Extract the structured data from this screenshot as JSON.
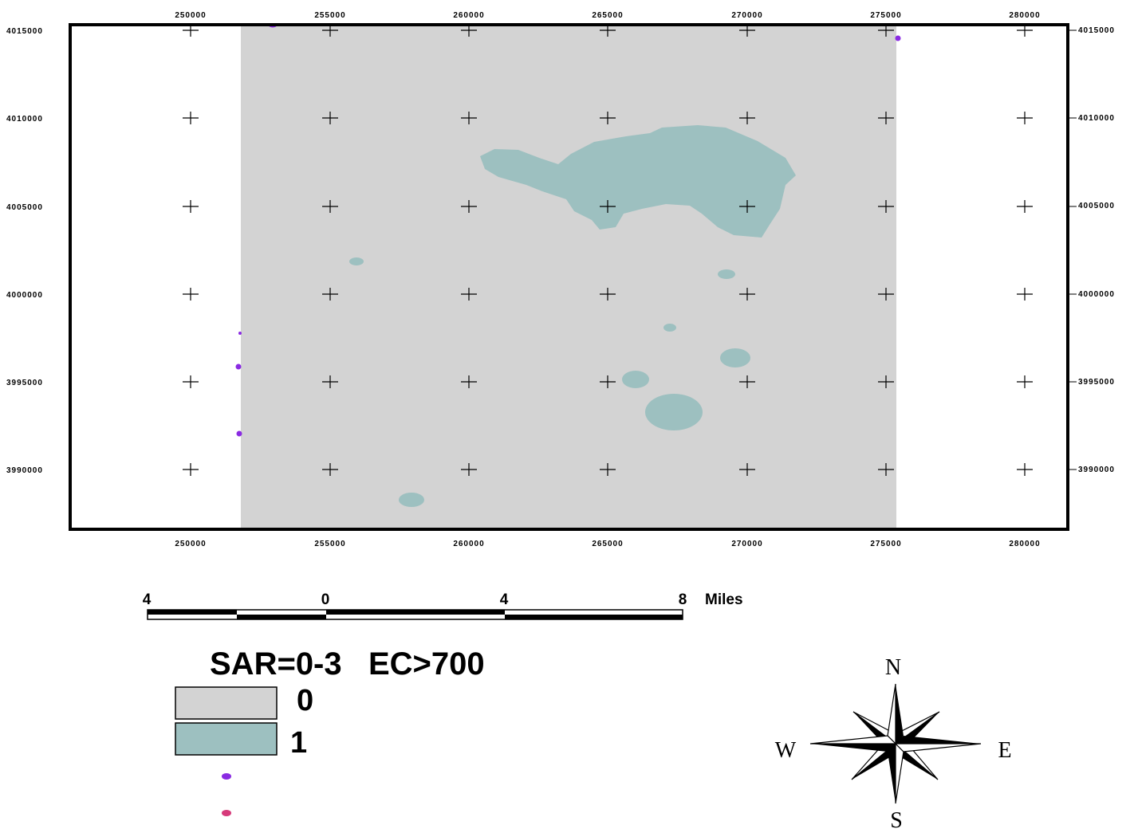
{
  "map": {
    "x_ticks": [
      "250000",
      "255000",
      "260000",
      "265000",
      "270000",
      "275000",
      "280000"
    ],
    "y_ticks": [
      "4015000",
      "4010000",
      "4005000",
      "4000000",
      "3995000",
      "3990000"
    ],
    "colors": {
      "frame": "#000000",
      "class_0": "#d3d3d3",
      "class_1": "#9dc0c0",
      "point_purple": "#8a2be2",
      "point_pink": "#d63a7a"
    }
  },
  "scale_bar": {
    "labels": [
      "4",
      "0",
      "4",
      "8"
    ],
    "unit": "Miles"
  },
  "legend": {
    "title": "SAR=0-3   EC>700",
    "items": [
      {
        "label": "0",
        "color": "#d3d3d3"
      },
      {
        "label": "1",
        "color": "#9dc0c0"
      }
    ],
    "points": [
      {
        "label": "",
        "color": "#8a2be2"
      },
      {
        "label": "",
        "color": "#d63a7a"
      }
    ]
  },
  "north_arrow": {
    "n": "N",
    "e": "E",
    "s": "S",
    "w": "W"
  }
}
